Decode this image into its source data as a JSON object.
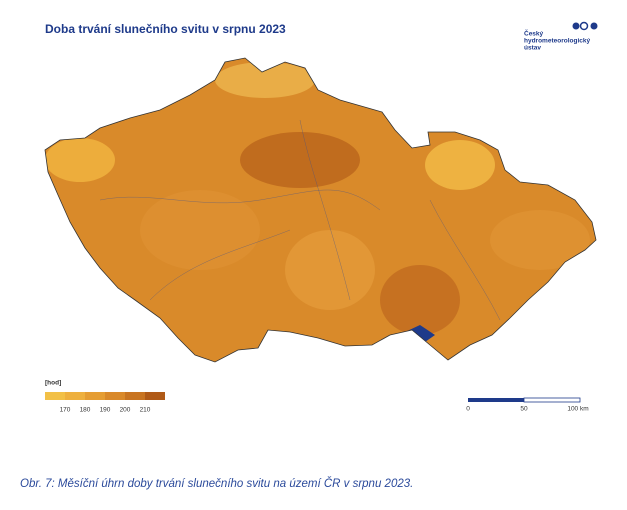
{
  "header": {
    "title": "Doba trvání slunečního svitu v srpnu 2023",
    "logo": [
      "Český",
      "hydrometeorologický",
      "ústav"
    ]
  },
  "legend": {
    "unit": "[hod]",
    "ticks": [
      170,
      180,
      190,
      200,
      210
    ],
    "colors": [
      "#f2c046",
      "#eeb03e",
      "#e59d33",
      "#d9892a",
      "#c87421",
      "#b05a17"
    ]
  },
  "scale_bar": {
    "labels": [
      "0",
      "50",
      "100 km"
    ]
  },
  "caption": "Obr. 7: Měsíční úhrn doby trvání slunečního svitu na území ČR v srpnu 2023."
}
